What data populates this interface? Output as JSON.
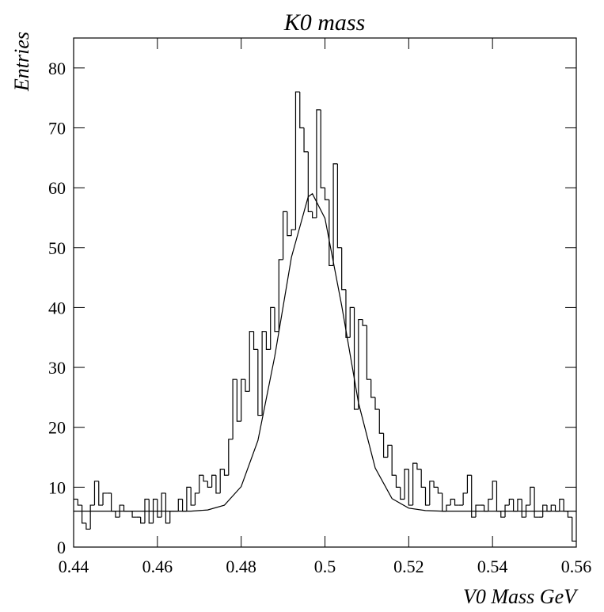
{
  "chart_data": {
    "type": "histogram",
    "title": "K0 mass",
    "xlabel": "V0 Mass GeV",
    "ylabel": "Entries",
    "color": "#000000",
    "bins": [
      0.44,
      0.441,
      0.442,
      0.443,
      0.444,
      0.445,
      0.446,
      0.447,
      0.448,
      0.449,
      0.45,
      0.451,
      0.452,
      0.453,
      0.454,
      0.455,
      0.456,
      0.457,
      0.458,
      0.459,
      0.46,
      0.461,
      0.462,
      0.463,
      0.464,
      0.465,
      0.466,
      0.467,
      0.468,
      0.469,
      0.47,
      0.471,
      0.472,
      0.473,
      0.474,
      0.475,
      0.476,
      0.477,
      0.478,
      0.479,
      0.48,
      0.481,
      0.482,
      0.483,
      0.484,
      0.485,
      0.486,
      0.487,
      0.488,
      0.489,
      0.49,
      0.491,
      0.492,
      0.493,
      0.494,
      0.495,
      0.496,
      0.497,
      0.498,
      0.499,
      0.5,
      0.501,
      0.502,
      0.503,
      0.504,
      0.505,
      0.506,
      0.507,
      0.508,
      0.509,
      0.51,
      0.511,
      0.512,
      0.513,
      0.514,
      0.515,
      0.516,
      0.517,
      0.518,
      0.519,
      0.52,
      0.521,
      0.522,
      0.523,
      0.524,
      0.525,
      0.526,
      0.527,
      0.528,
      0.529,
      0.53,
      0.531,
      0.532,
      0.533,
      0.534,
      0.535,
      0.536,
      0.537,
      0.538,
      0.539,
      0.54,
      0.541,
      0.542,
      0.543,
      0.544,
      0.545,
      0.546,
      0.547,
      0.548,
      0.549,
      0.55,
      0.551,
      0.552,
      0.553,
      0.554,
      0.555,
      0.556,
      0.557,
      0.558,
      0.559,
      0.56
    ],
    "values": [
      8,
      7,
      4,
      3,
      7,
      11,
      7,
      9,
      9,
      6,
      5,
      7,
      6,
      6,
      5,
      5,
      4,
      8,
      4,
      8,
      5,
      9,
      4,
      6,
      6,
      8,
      6,
      10,
      7,
      9,
      12,
      11,
      10,
      12,
      9,
      13,
      12,
      18,
      28,
      21,
      28,
      26,
      36,
      33,
      22,
      36,
      33,
      40,
      36,
      48,
      56,
      52,
      53,
      76,
      70,
      66,
      56,
      55,
      73,
      60,
      58,
      47,
      64,
      50,
      43,
      35,
      40,
      23,
      38,
      37,
      28,
      25,
      23,
      19,
      15,
      17,
      12,
      10,
      8,
      13,
      7,
      14,
      13,
      10,
      7,
      11,
      10,
      9,
      6,
      7,
      8,
      7,
      7,
      9,
      12,
      5,
      7,
      7,
      6,
      8,
      11,
      6,
      5,
      7,
      8,
      6,
      8,
      5,
      7,
      10,
      5,
      5,
      7,
      6,
      7,
      6,
      8,
      6,
      5,
      1
    ],
    "fit": {
      "x": [
        0.44,
        0.444,
        0.448,
        0.452,
        0.456,
        0.46,
        0.464,
        0.468,
        0.472,
        0.476,
        0.48,
        0.484,
        0.488,
        0.492,
        0.496,
        0.497,
        0.5,
        0.504,
        0.508,
        0.512,
        0.516,
        0.52,
        0.524,
        0.528,
        0.532,
        0.536,
        0.54,
        0.544,
        0.548,
        0.552,
        0.556,
        0.56
      ],
      "values": [
        6,
        6,
        6,
        6,
        6,
        6,
        6,
        6,
        6.2,
        7,
        10.1,
        17.8,
        31.8,
        48.4,
        58.5,
        59,
        54.9,
        40.3,
        24.1,
        13.2,
        8.1,
        6.5,
        6.1,
        6,
        6,
        6,
        6,
        6,
        6,
        6,
        6,
        6
      ]
    },
    "xlim": [
      0.44,
      0.56
    ],
    "ylim": [
      0,
      85
    ],
    "xticks": [
      0.44,
      0.46,
      0.48,
      0.5,
      0.52,
      0.54,
      0.56
    ],
    "yticks": [
      0,
      10,
      20,
      30,
      40,
      50,
      60,
      70,
      80
    ]
  }
}
